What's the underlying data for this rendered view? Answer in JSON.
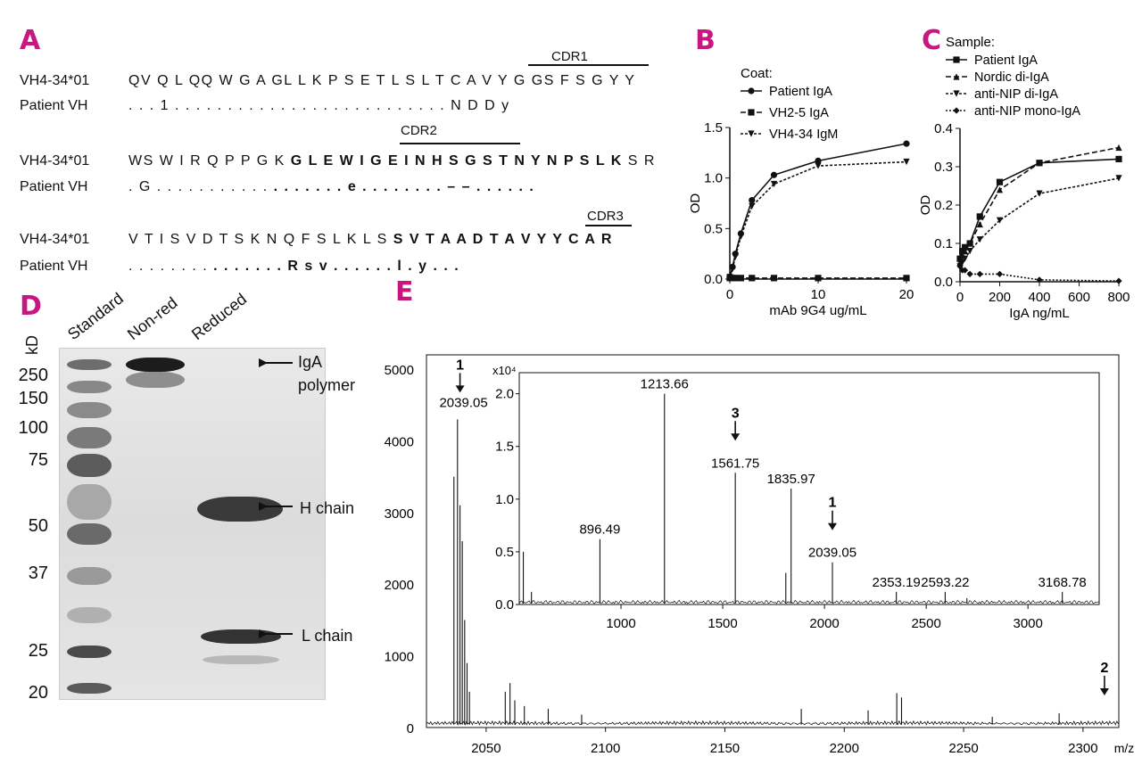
{
  "panels": {
    "a": "A",
    "b": "B",
    "c": "C",
    "d": "D",
    "e": "E"
  },
  "alignment": {
    "cdr1": "CDR1",
    "cdr2": "CDR2",
    "cdr3": "CDR3",
    "row1_name": "VH4-34*01",
    "row1_seq": "QV Q L QQ W G A  GL  L  K P S E T L S L T C A V Y  G  GS F S G Y Y",
    "row1p_name": "Patient VH",
    "row1p_seq": ". . . 1 . . . . . . . . . . . . . . . . . . . . . . . . . . N D D y",
    "row2_name": "VH4-34*01",
    "row2_plain": "WS W I  R Q P P G K ",
    "row2_bold": "G L E W I G E  I N H S G S T N Y N P S L K",
    "row2_tail": " S R",
    "row2p_name": "Patient VH",
    "row2p_a": ". G . .           . . . . . . . . .",
    "row2p_bold1": " . . . . . . . e . . . . . . . . – – . . . . . .",
    "row3_name": "VH4-34*01",
    "row3_plain": "V T I S V D T S K N Q F S L K L S ",
    "row3_bold": "S V T A A D T A V Y Y C A R",
    "row3p_name": "Patient VH",
    "row3p_a": ". . . .         . . . .",
    "row3p_bold": " . . . . . . . R s v . . . . . . l . y . . ."
  },
  "chart_data": [
    {
      "type": "line",
      "title": "",
      "legend_title": "Coat:",
      "xlabel": "mAb 9G4 ug/mL",
      "ylabel": "OD",
      "xlim": [
        0,
        20
      ],
      "ylim": [
        0,
        1.5
      ],
      "xticks": [
        "0",
        "10",
        "20"
      ],
      "yticks": [
        "0.0",
        "0.5",
        "1.0",
        "1.5"
      ],
      "series": [
        {
          "name": "Patient IgA",
          "marker": "circle",
          "x": [
            0,
            0.31,
            0.63,
            1.25,
            2.5,
            5,
            10,
            20
          ],
          "y": [
            0.02,
            0.12,
            0.25,
            0.45,
            0.78,
            1.03,
            1.17,
            1.34
          ]
        },
        {
          "name": "VH2-5 IgA",
          "marker": "square",
          "x": [
            0,
            0.31,
            0.63,
            1.25,
            2.5,
            5,
            10,
            20
          ],
          "y": [
            0.01,
            0.01,
            0.01,
            0.01,
            0.01,
            0.01,
            0.01,
            0.01
          ]
        },
        {
          "name": "VH4-34 IgM",
          "marker": "triangle-down",
          "x": [
            0,
            0.31,
            0.63,
            1.25,
            2.5,
            5,
            10,
            20
          ],
          "y": [
            0.02,
            0.1,
            0.22,
            0.42,
            0.72,
            0.94,
            1.12,
            1.16
          ]
        }
      ]
    },
    {
      "type": "line",
      "title": "",
      "legend_title": "Sample:",
      "xlabel": "IgA ng/mL",
      "ylabel": "OD",
      "xlim": [
        0,
        800
      ],
      "ylim": [
        0,
        0.4
      ],
      "xticks": [
        "0",
        "200",
        "400",
        "600",
        "800"
      ],
      "yticks": [
        "0.0",
        "0.1",
        "0.2",
        "0.3",
        "0.4"
      ],
      "series": [
        {
          "name": "Patient IgA",
          "marker": "square",
          "x": [
            0,
            12,
            25,
            50,
            100,
            200,
            400,
            800
          ],
          "y": [
            0.06,
            0.08,
            0.09,
            0.1,
            0.17,
            0.26,
            0.31,
            0.32
          ]
        },
        {
          "name": "Nordic di-IgA",
          "marker": "triangle-up",
          "x": [
            0,
            12,
            25,
            50,
            100,
            200,
            400,
            800
          ],
          "y": [
            0.05,
            0.07,
            0.08,
            0.1,
            0.15,
            0.24,
            0.31,
            0.35
          ]
        },
        {
          "name": "anti-NIP di-IgA",
          "marker": "triangle-down",
          "x": [
            0,
            12,
            25,
            50,
            100,
            200,
            400,
            800
          ],
          "y": [
            0.04,
            0.05,
            0.06,
            0.08,
            0.11,
            0.16,
            0.23,
            0.27
          ]
        },
        {
          "name": "anti-NIP mono-IgA",
          "marker": "diamond",
          "x": [
            0,
            12,
            25,
            50,
            100,
            200,
            400,
            800
          ],
          "y": [
            0.04,
            0.03,
            0.03,
            0.02,
            0.02,
            0.02,
            0.005,
            0.002
          ]
        }
      ]
    },
    {
      "type": "line",
      "title": "",
      "xlabel": "m/z",
      "ylabel": "",
      "xlim": [
        2025,
        2315
      ],
      "ylim": [
        0,
        5200
      ],
      "xticks": [
        "2050",
        "2100",
        "2150",
        "2200",
        "2250",
        "2300"
      ],
      "yticks": [
        "0",
        "1000",
        "2000",
        "3000",
        "4000",
        "5000"
      ],
      "peaks": [
        {
          "x": 2036.5,
          "y": 3500
        },
        {
          "x": 2038.0,
          "y": 4300
        },
        {
          "x": 2039.05,
          "y": 3100
        },
        {
          "x": 2040.0,
          "y": 2600
        },
        {
          "x": 2041,
          "y": 1500
        },
        {
          "x": 2042,
          "y": 900
        },
        {
          "x": 2043,
          "y": 500
        },
        {
          "x": 2058,
          "y": 500
        },
        {
          "x": 2060,
          "y": 620
        },
        {
          "x": 2062,
          "y": 380
        },
        {
          "x": 2066,
          "y": 300
        },
        {
          "x": 2076,
          "y": 260
        },
        {
          "x": 2090,
          "y": 180
        },
        {
          "x": 2182,
          "y": 260
        },
        {
          "x": 2210,
          "y": 240
        },
        {
          "x": 2222,
          "y": 480
        },
        {
          "x": 2224,
          "y": 420
        },
        {
          "x": 2262,
          "y": 150
        },
        {
          "x": 2290,
          "y": 200
        }
      ],
      "labels": [
        {
          "x": 2039.05,
          "y": 4300,
          "text": "2039.05",
          "number": "1"
        },
        {
          "x": 2309,
          "y": 150,
          "text": "",
          "number": "2"
        }
      ]
    },
    {
      "type": "line",
      "title": "",
      "xlabel": "",
      "ylabel": "",
      "y_unit_label": "x10⁴",
      "xlim": [
        500,
        3350
      ],
      "ylim": [
        0,
        2.2
      ],
      "xticks": [
        "1000",
        "1500",
        "2000",
        "2500",
        "3000"
      ],
      "yticks": [
        "0.0",
        "0.5",
        "1.0",
        "1.5",
        "2.0"
      ],
      "peaks": [
        {
          "x": 520,
          "y": 0.5
        },
        {
          "x": 560,
          "y": 0.12
        },
        {
          "x": 896.49,
          "y": 0.62
        },
        {
          "x": 1213.66,
          "y": 2.0
        },
        {
          "x": 1561.75,
          "y": 1.25
        },
        {
          "x": 1835.97,
          "y": 1.1
        },
        {
          "x": 1810,
          "y": 0.3
        },
        {
          "x": 2039.05,
          "y": 0.4
        },
        {
          "x": 2353.19,
          "y": 0.12
        },
        {
          "x": 2593.22,
          "y": 0.12
        },
        {
          "x": 2700,
          "y": 0.06
        },
        {
          "x": 3168.78,
          "y": 0.12
        }
      ],
      "labels": [
        {
          "x": 896.49,
          "text": "896.49"
        },
        {
          "x": 1213.66,
          "text": "1213.66"
        },
        {
          "x": 1561.75,
          "text": "1561.75",
          "number": "3"
        },
        {
          "x": 1835.97,
          "text": "1835.97"
        },
        {
          "x": 2039.05,
          "text": "2039.05",
          "number": "1"
        },
        {
          "x": 2353.19,
          "text": "2353.19"
        },
        {
          "x": 2593.22,
          "text": "2593.22"
        },
        {
          "x": 3168.78,
          "text": "3168.78"
        }
      ]
    }
  ],
  "gel": {
    "kd_label": "kD",
    "lanes": [
      "Standard",
      "Non-red",
      "Reduced"
    ],
    "markers": [
      "250",
      "150",
      "100",
      "75",
      "50",
      "37",
      "25",
      "20"
    ],
    "annotations": [
      {
        "line1": "IgA",
        "line2": "polymer"
      },
      {
        "line1": "H chain",
        "line2": ""
      },
      {
        "line1": "L chain",
        "line2": ""
      }
    ]
  }
}
